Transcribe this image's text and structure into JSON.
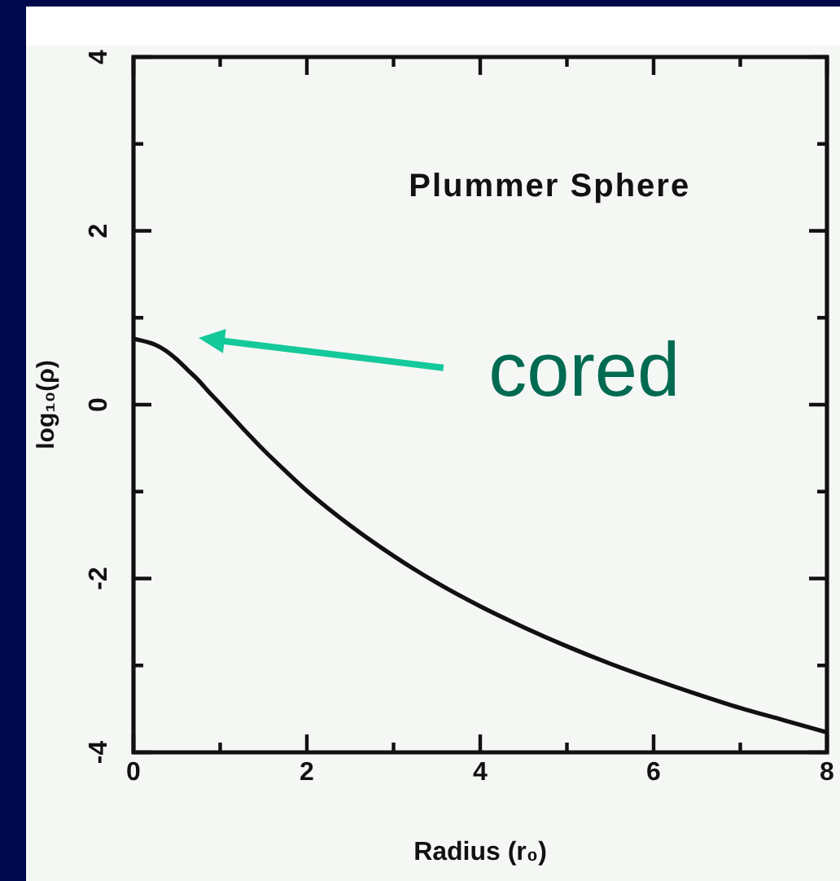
{
  "chart_data": {
    "type": "line",
    "title": "Plummer Sphere",
    "xlabel": "Radius (r₀)",
    "ylabel": "log₁₀(ρ)",
    "x": [
      0,
      0.25,
      0.375,
      0.5,
      0.625,
      0.75,
      0.875,
      1,
      1.25,
      1.5,
      1.75,
      2,
      2.5,
      3,
      3.5,
      4,
      4.5,
      5,
      5.5,
      6,
      6.5,
      7,
      7.5,
      8
    ],
    "values": [
      0.76,
      0.69,
      0.62,
      0.52,
      0.4,
      0.28,
      0.14,
      0.01,
      -0.26,
      -0.52,
      -0.76,
      -0.99,
      -1.39,
      -1.74,
      -2.05,
      -2.32,
      -2.56,
      -2.78,
      -2.98,
      -3.16,
      -3.33,
      -3.49,
      -3.63,
      -3.77
    ],
    "color": "#111111",
    "xlim": [
      0,
      8
    ],
    "ylim": [
      -4,
      4
    ],
    "xticks": [
      0,
      {
        "value": 1,
        "label": null
      },
      2,
      {
        "value": 3,
        "label": null
      },
      4,
      {
        "value": 5,
        "label": null
      },
      6,
      {
        "value": 7,
        "label": null
      },
      8
    ],
    "yticks": [
      -4,
      {
        "value": -3,
        "label": null
      },
      -2,
      {
        "value": -1,
        "label": null
      },
      0,
      {
        "value": 1,
        "label": null
      },
      2,
      {
        "value": 3,
        "label": null
      },
      4
    ],
    "annotations": [
      "cored"
    ],
    "grid": false,
    "legend": false,
    "marker": "none",
    "line_style": "solid"
  }
}
